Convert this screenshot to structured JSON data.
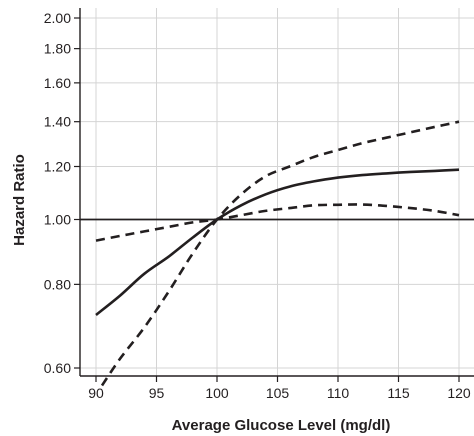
{
  "chart_data": {
    "type": "line",
    "title": "",
    "xlabel": "Average Glucose Level (mg/dl)",
    "ylabel": "Hazard Ratio",
    "xlim": [
      89,
      121
    ],
    "ylim": [
      0.585,
      2.1
    ],
    "y_scale": "log",
    "grid": true,
    "legend": "none",
    "x_ticks": [
      90,
      95,
      100,
      105,
      110,
      115,
      120
    ],
    "x_tick_labels": [
      "90",
      "95",
      "100",
      "105",
      "110",
      "115",
      "120"
    ],
    "y_ticks": [
      0.6,
      0.8,
      1.0,
      1.2,
      1.4,
      1.6,
      1.8,
      2.0
    ],
    "y_tick_labels": [
      "0.60",
      "0.80",
      "1.00",
      "1.20",
      "1.40",
      "1.60",
      "1.80",
      "2.00"
    ],
    "reference_line": {
      "y": 1.0
    },
    "series": [
      {
        "style": "solid",
        "x": [
          90,
          92,
          94,
          96,
          98,
          100,
          102,
          104,
          106,
          108,
          110,
          112,
          114,
          116,
          118,
          120
        ],
        "y": [
          0.72,
          0.77,
          0.83,
          0.88,
          0.94,
          1.0,
          1.05,
          1.09,
          1.12,
          1.14,
          1.155,
          1.165,
          1.172,
          1.178,
          1.182,
          1.187
        ]
      },
      {
        "style": "dashed",
        "x": [
          90,
          92,
          94,
          96,
          98,
          100,
          102,
          104,
          106,
          108,
          110,
          112,
          114,
          116,
          118,
          120
        ],
        "y": [
          0.93,
          0.945,
          0.96,
          0.975,
          0.99,
          1.0,
          1.015,
          1.03,
          1.04,
          1.05,
          1.052,
          1.053,
          1.048,
          1.04,
          1.03,
          1.015
        ]
      },
      {
        "style": "dashed",
        "x": [
          90.5,
          92,
          94,
          96,
          98,
          100,
          102,
          104,
          106,
          108,
          110,
          112,
          114,
          116,
          118,
          120
        ],
        "y": [
          0.565,
          0.62,
          0.69,
          0.78,
          0.89,
          1.0,
          1.09,
          1.16,
          1.2,
          1.24,
          1.27,
          1.3,
          1.325,
          1.35,
          1.375,
          1.4
        ]
      }
    ]
  }
}
